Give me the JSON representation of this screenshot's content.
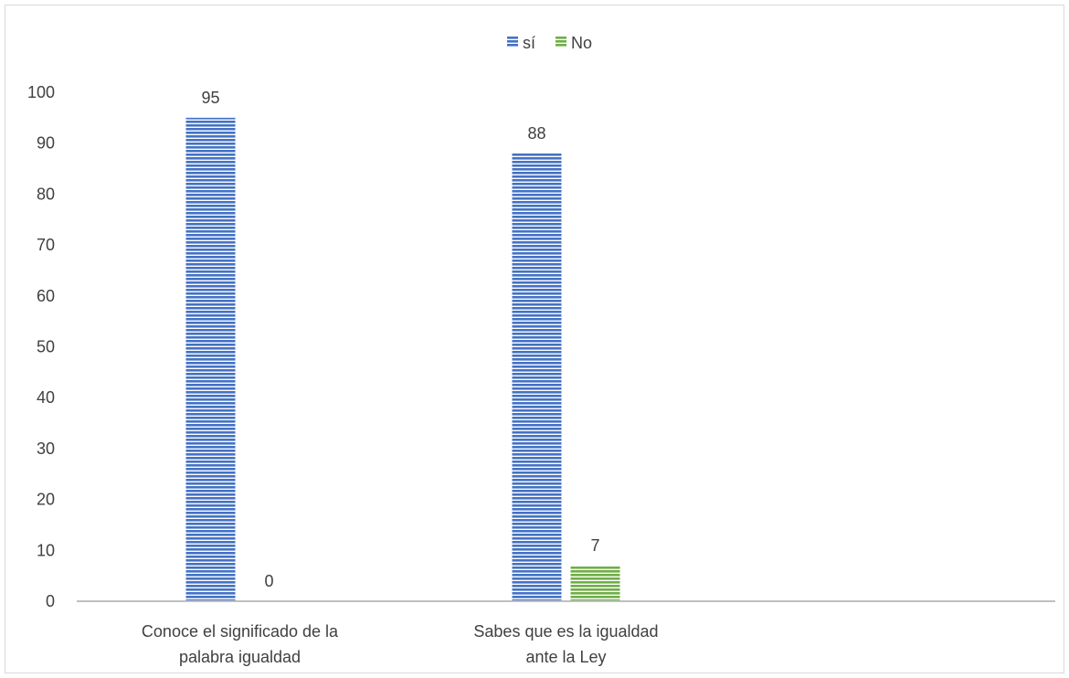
{
  "chart_data": {
    "type": "bar",
    "categories": [
      [
        "Conoce el significado de la",
        "palabra igualdad"
      ],
      [
        "Sabes que es la igualdad",
        "ante la Ley"
      ],
      [
        "",
        ""
      ]
    ],
    "series": [
      {
        "name": "sí",
        "values": [
          95,
          88,
          null
        ],
        "labels": [
          "95",
          "88",
          ""
        ],
        "color": "#4472c4"
      },
      {
        "name": "No",
        "values": [
          0,
          7,
          null
        ],
        "labels": [
          "0",
          "7",
          ""
        ],
        "color": "#70ad47"
      }
    ],
    "ylim": [
      0,
      100
    ],
    "yticks": [
      0,
      10,
      20,
      30,
      40,
      50,
      60,
      70,
      80,
      90,
      100
    ],
    "grid": false,
    "legend_position": "top-center",
    "title": "",
    "xlabel": "",
    "ylabel": ""
  }
}
